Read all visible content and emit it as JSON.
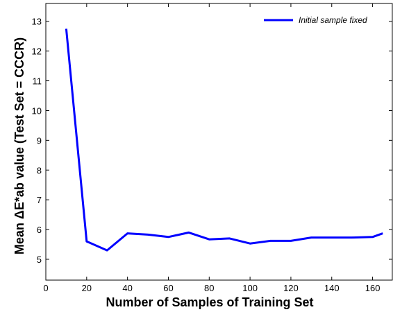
{
  "chart_data": {
    "type": "line",
    "title": "",
    "xlabel": "Number of Samples of Training Set",
    "ylabel": "Mean ΔE*ab value (Test Set = CCCR)",
    "xlim": [
      0,
      170
    ],
    "ylim": [
      4.3,
      13.6
    ],
    "xticks": [
      0,
      20,
      40,
      60,
      80,
      100,
      120,
      140,
      160
    ],
    "yticks": [
      5,
      6,
      7,
      8,
      9,
      10,
      11,
      12,
      13
    ],
    "grid": false,
    "legend_position": "top-right",
    "series": [
      {
        "name": "Initial sample fixed",
        "color": "#0000ff",
        "x": [
          10,
          20,
          30,
          40,
          50,
          60,
          70,
          80,
          90,
          100,
          110,
          120,
          130,
          140,
          150,
          160,
          165
        ],
        "y": [
          12.75,
          5.6,
          5.3,
          5.87,
          5.83,
          5.75,
          5.9,
          5.67,
          5.7,
          5.53,
          5.62,
          5.62,
          5.73,
          5.73,
          5.73,
          5.75,
          5.87
        ]
      }
    ]
  }
}
